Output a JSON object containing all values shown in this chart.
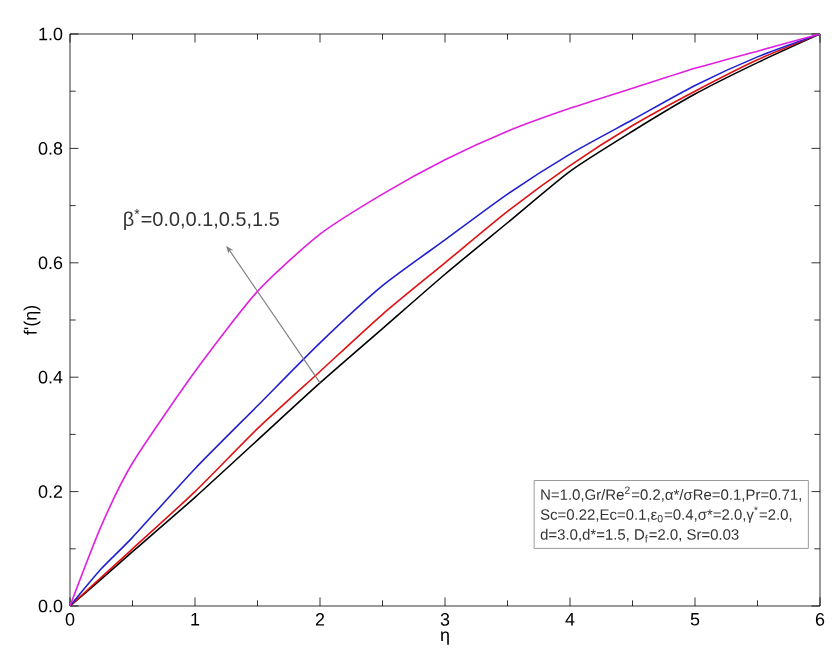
{
  "chart_data": {
    "type": "line",
    "xlabel": "η",
    "ylabel": "f'(η)",
    "x": [
      0,
      0.25,
      0.5,
      1,
      1.5,
      2,
      2.5,
      3,
      3.5,
      4,
      4.5,
      5,
      5.5,
      6
    ],
    "series": [
      {
        "color": "#000000",
        "values": [
          0,
          0.047,
          0.095,
          0.19,
          0.29,
          0.39,
          0.485,
          0.58,
          0.67,
          0.76,
          0.83,
          0.895,
          0.95,
          1.0
        ]
      },
      {
        "color": "#e01010",
        "values": [
          0,
          0.05,
          0.1,
          0.2,
          0.31,
          0.41,
          0.51,
          0.6,
          0.69,
          0.77,
          0.84,
          0.9,
          0.955,
          1.0
        ]
      },
      {
        "color": "#2020d0",
        "values": [
          0,
          0.065,
          0.12,
          0.24,
          0.35,
          0.46,
          0.56,
          0.64,
          0.72,
          0.79,
          0.85,
          0.91,
          0.96,
          1.0
        ]
      },
      {
        "color": "#e020e0",
        "values": [
          0,
          0.14,
          0.25,
          0.41,
          0.55,
          0.65,
          0.72,
          0.78,
          0.83,
          0.87,
          0.905,
          0.94,
          0.97,
          1.0
        ]
      }
    ],
    "xlim": [
      0,
      6
    ],
    "ylim": [
      0,
      1.0
    ],
    "xticks": [
      0,
      1,
      2,
      3,
      4,
      5,
      6
    ],
    "yticks": [
      {
        "value": 0,
        "label": "0.0"
      },
      {
        "value": 0.2,
        "label": "0.2"
      },
      {
        "value": 0.4,
        "label": "0.4"
      },
      {
        "value": 0.6,
        "label": "0.6"
      },
      {
        "value": 0.8,
        "label": "0.8"
      },
      {
        "value": 1.0,
        "label": "1.0"
      }
    ],
    "grid": false,
    "marker": "none",
    "line_style": "solid",
    "annotations": [
      {
        "text": "β$^{*}$=0.0,0.1,0.5,1.5",
        "x": 1.25,
        "y": 0.63
      },
      "N=1.0,Gr/Re$^{2}$=0.2,α*/σRe=0.1,Pr=0.71,",
      "Sc=0.22,Ec=0.1,ε$_{0}$=0.4,σ*=2.0,γ$^{*}$=2.0,",
      "d=3.0,d*=1.5, D$_{f}$=2.0, Sr=0.03"
    ]
  }
}
